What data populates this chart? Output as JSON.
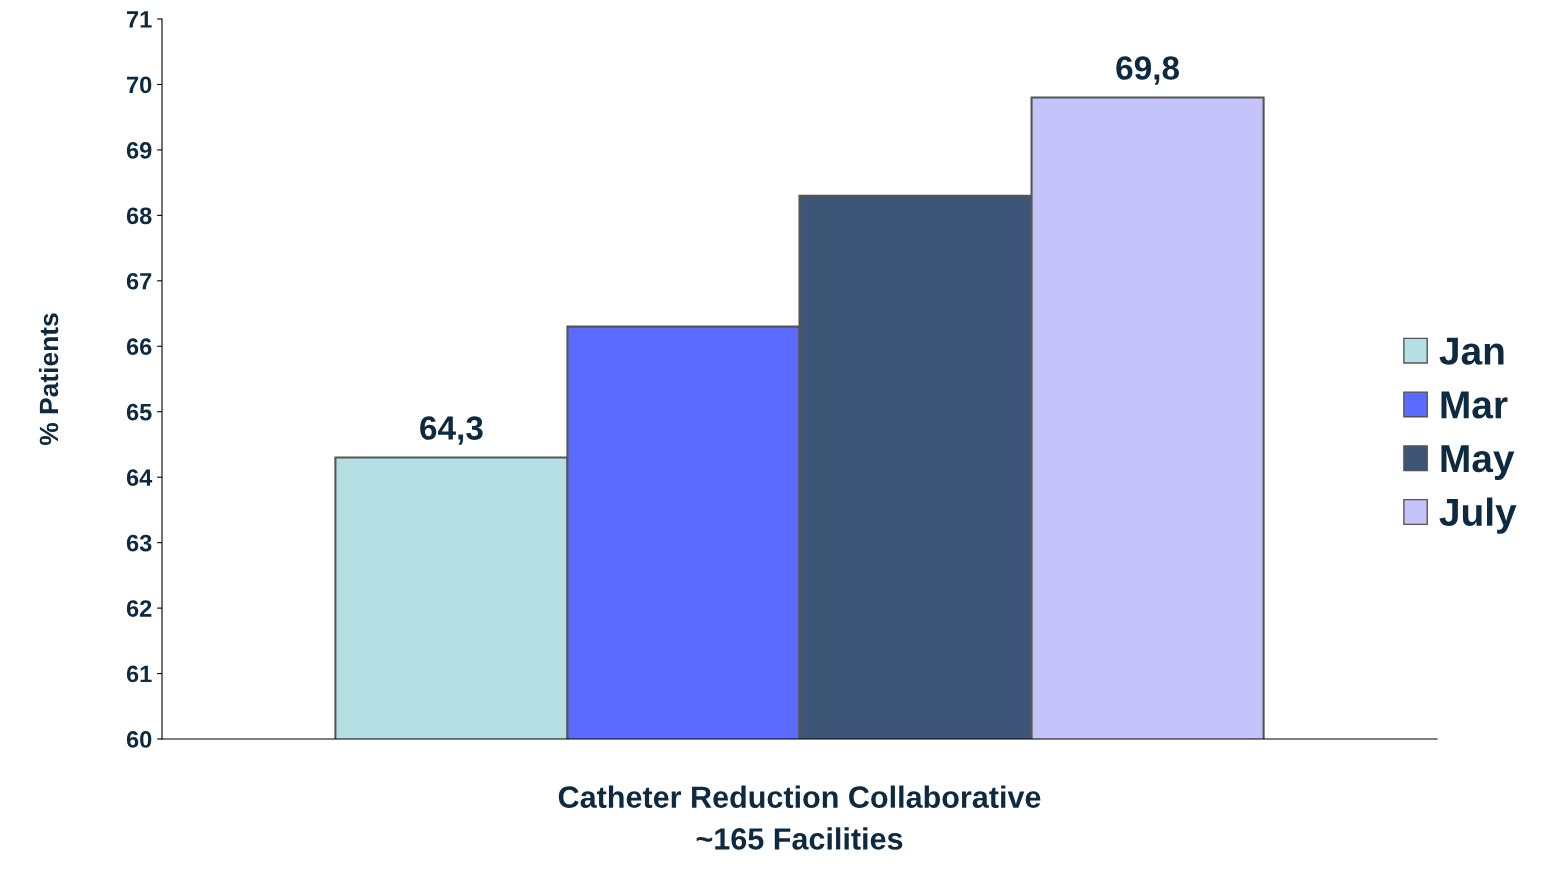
{
  "chart_data": {
    "type": "bar",
    "xlabel": "Catheter Reduction Collaborative\n~165 Facilities",
    "ylabel": "% Patients",
    "categories": [
      null
    ],
    "series": [
      {
        "name": "Jan",
        "color": "#b4e0e4",
        "values": [
          64.3
        ],
        "value_labels": [
          "64,3"
        ]
      },
      {
        "name": "Mar",
        "color": "#5b6bff",
        "values": [
          66.3
        ],
        "value_labels": [
          null
        ]
      },
      {
        "name": "May",
        "color": "#3d5577",
        "values": [
          68.3
        ],
        "value_labels": [
          null
        ]
      },
      {
        "name": "July",
        "color": "#c4c4fa",
        "values": [
          69.8
        ],
        "value_labels": [
          "69,8"
        ]
      }
    ],
    "ylim": [
      60,
      71
    ],
    "yticks": [
      60,
      61,
      62,
      63,
      64,
      65,
      66,
      67,
      68,
      69,
      70,
      71
    ],
    "grid": false,
    "legend": "right"
  }
}
